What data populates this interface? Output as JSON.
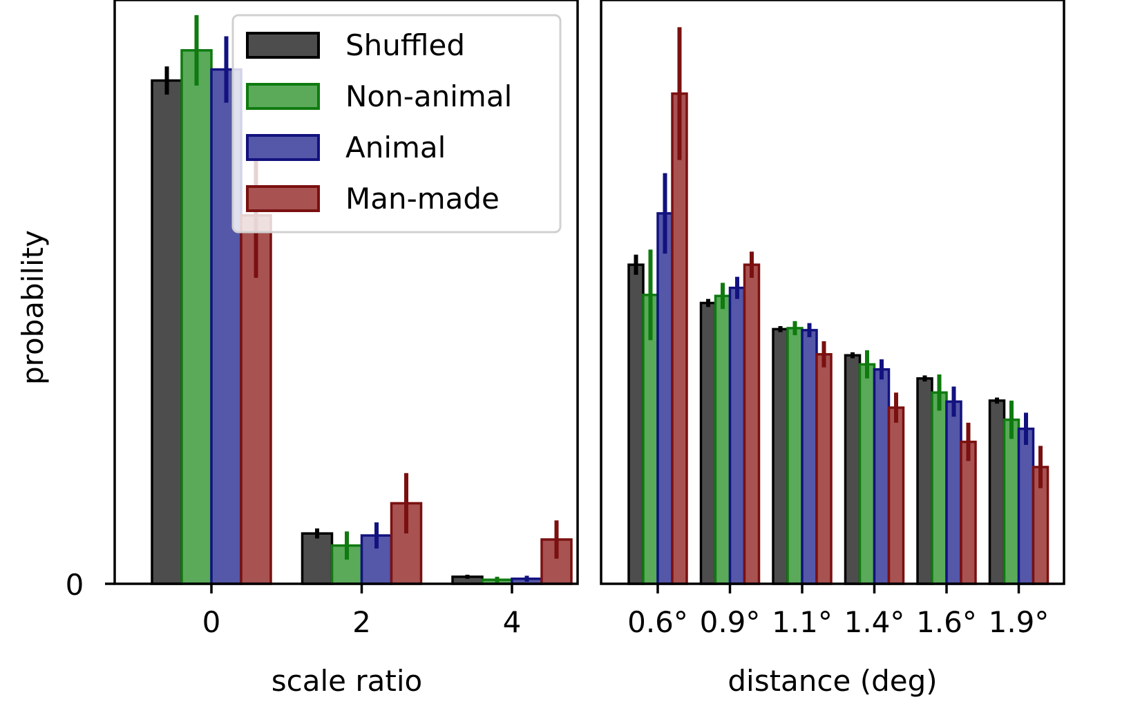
{
  "colors": {
    "Shuffled": {
      "fill": "#4d4d4d",
      "edge": "#000000"
    },
    "Non-animal": {
      "fill": "#5aaa5a",
      "edge": "#0f7a0f"
    },
    "Animal": {
      "fill": "#5557a8",
      "edge": "#12127f"
    },
    "Man-made": {
      "fill": "#a85252",
      "edge": "#7a1010"
    }
  },
  "y_axis": {
    "label": "probability",
    "tick_label": "0"
  },
  "legend": {
    "entries": [
      "Shuffled",
      "Non-animal",
      "Animal",
      "Man-made"
    ],
    "position": "upper-left of left panel (overlapping)"
  },
  "chart_data": [
    {
      "type": "bar",
      "panel": "left",
      "xlabel": "scale ratio",
      "ylabel": "probability",
      "categories": [
        "0",
        "2",
        "4"
      ],
      "tick_labels": [
        "0",
        "2",
        "4"
      ],
      "ylim": [
        0,
        0.58
      ],
      "series": [
        {
          "name": "Shuffled",
          "values": [
            0.5,
            0.05,
            0.007
          ],
          "errors": [
            0.014,
            0.005,
            0.002
          ]
        },
        {
          "name": "Non-animal",
          "values": [
            0.53,
            0.038,
            0.004
          ],
          "errors": [
            0.035,
            0.014,
            0.003
          ]
        },
        {
          "name": "Animal",
          "values": [
            0.511,
            0.048,
            0.005
          ],
          "errors": [
            0.033,
            0.013,
            0.003
          ]
        },
        {
          "name": "Man-made",
          "values": [
            0.366,
            0.08,
            0.044
          ],
          "errors": [
            0.062,
            0.03,
            0.019
          ]
        }
      ]
    },
    {
      "type": "bar",
      "panel": "right",
      "xlabel": "distance (deg)",
      "categories": [
        "0.6°",
        "0.9°",
        "1.1°",
        "1.4°",
        "1.6°",
        "1.9°"
      ],
      "tick_labels": [
        "0.6°",
        "0.9°",
        "1.1°",
        "1.4°",
        "1.6°",
        "1.9°"
      ],
      "ylim": [
        0,
        0.58
      ],
      "series": [
        {
          "name": "Shuffled",
          "values": [
            0.317,
            0.279,
            0.253,
            0.227,
            0.204,
            0.182
          ],
          "errors": [
            0.01,
            0.004,
            0.003,
            0.003,
            0.003,
            0.003
          ]
        },
        {
          "name": "Non-animal",
          "values": [
            0.287,
            0.286,
            0.254,
            0.218,
            0.19,
            0.163
          ],
          "errors": [
            0.045,
            0.013,
            0.007,
            0.014,
            0.018,
            0.019
          ]
        },
        {
          "name": "Animal",
          "values": [
            0.368,
            0.294,
            0.252,
            0.213,
            0.181,
            0.154
          ],
          "errors": [
            0.04,
            0.011,
            0.007,
            0.01,
            0.015,
            0.016
          ]
        },
        {
          "name": "Man-made",
          "values": [
            0.487,
            0.317,
            0.228,
            0.175,
            0.141,
            0.116
          ],
          "errors": [
            0.066,
            0.013,
            0.013,
            0.015,
            0.019,
            0.021
          ]
        }
      ]
    }
  ]
}
